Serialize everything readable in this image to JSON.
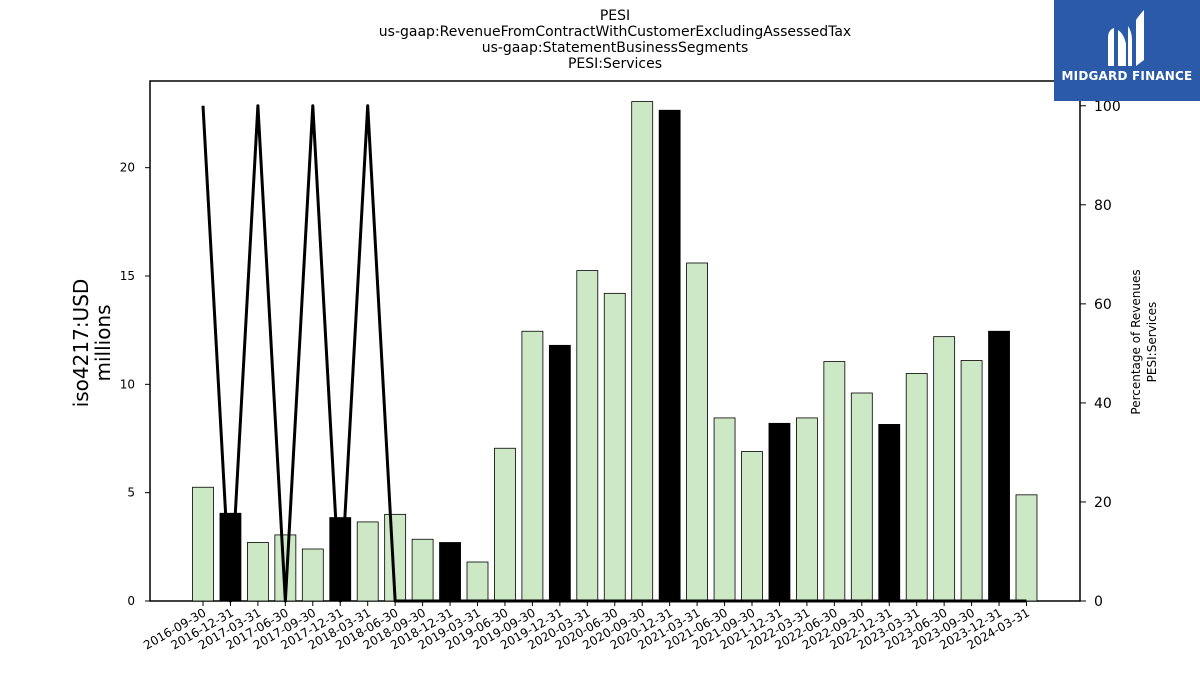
{
  "chart_data": {
    "type": "bar",
    "title_lines": [
      "PESI",
      "us-gaap:RevenueFromContractWithCustomerExcludingAssessedTax",
      "us-gaap:StatementBusinessSegments",
      "PESI:Services"
    ],
    "ylabel_lines": [
      "iso4217:USD",
      "millions"
    ],
    "y2label_lines": [
      "Percentage of Revenues",
      "PESI:Services"
    ],
    "ylim": [
      0,
      24
    ],
    "y2lim": [
      0,
      105
    ],
    "yticks": [
      0,
      5,
      10,
      15,
      20
    ],
    "y2ticks": [
      0,
      20,
      40,
      60,
      80,
      100
    ],
    "categories": [
      "2016-09-30",
      "2016-12-31",
      "2017-03-31",
      "2017-06-30",
      "2017-09-30",
      "2017-12-31",
      "2018-03-31",
      "2018-06-30",
      "2018-09-30",
      "2018-12-31",
      "2019-03-31",
      "2019-06-30",
      "2019-09-30",
      "2019-12-31",
      "2020-03-31",
      "2020-06-30",
      "2020-09-30",
      "2020-12-31",
      "2021-03-31",
      "2021-06-30",
      "2021-09-30",
      "2021-12-31",
      "2022-03-31",
      "2022-06-30",
      "2022-09-30",
      "2022-12-31",
      "2023-03-31",
      "2023-06-30",
      "2023-09-30",
      "2023-12-31",
      "2024-03-31"
    ],
    "series": [
      {
        "type": "bar",
        "values": [
          5.25,
          4.05,
          2.7,
          3.05,
          2.4,
          3.85,
          3.65,
          4.0,
          2.85,
          2.7,
          1.8,
          7.05,
          12.45,
          11.8,
          15.25,
          14.2,
          23.05,
          22.65,
          15.6,
          8.45,
          6.9,
          8.2,
          8.45,
          11.05,
          9.6,
          8.15,
          10.5,
          12.2,
          11.1,
          12.45,
          4.9
        ],
        "highlight": [
          false,
          true,
          false,
          false,
          false,
          true,
          false,
          false,
          false,
          true,
          false,
          false,
          false,
          true,
          false,
          false,
          false,
          true,
          false,
          false,
          false,
          true,
          false,
          false,
          false,
          true,
          false,
          false,
          false,
          true,
          false
        ]
      },
      {
        "type": "line",
        "axis": "right",
        "values": [
          100,
          0,
          100,
          0,
          100,
          0,
          100,
          0,
          0,
          0,
          0,
          0,
          0,
          0,
          0,
          0,
          0,
          0,
          0,
          0,
          0,
          0,
          0,
          0,
          0,
          0,
          0,
          0,
          0,
          0,
          0
        ]
      }
    ],
    "colors": {
      "bar_fill": "#cde8c5",
      "bar_highlight": "#000000",
      "bar_edge": "#000000",
      "line": "#000000"
    },
    "grid": false
  },
  "logo": {
    "text": "MIDGARD FINANCE",
    "icon": "midgard-logo-icon",
    "background": "#2a5aa8"
  }
}
